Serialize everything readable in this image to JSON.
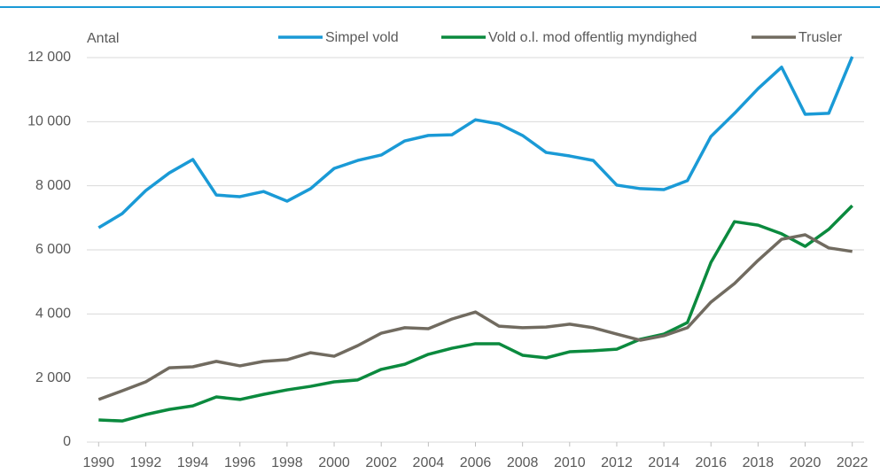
{
  "chart_data": {
    "type": "line",
    "y_label": "Antal",
    "x": [
      1990,
      1991,
      1992,
      1993,
      1994,
      1995,
      1996,
      1997,
      1998,
      1999,
      2000,
      2001,
      2002,
      2003,
      2004,
      2005,
      2006,
      2007,
      2008,
      2009,
      2010,
      2011,
      2012,
      2013,
      2014,
      2015,
      2016,
      2017,
      2018,
      2019,
      2020,
      2021,
      2022
    ],
    "series": [
      {
        "name": "Simpel vold",
        "color": "#1a9ad6",
        "values": [
          6690,
          7130,
          7850,
          8400,
          8820,
          7710,
          7660,
          7820,
          7520,
          7910,
          8540,
          8790,
          8960,
          9400,
          9570,
          9590,
          10060,
          9930,
          9570,
          9040,
          8930,
          8790,
          8020,
          7910,
          7880,
          8160,
          9540,
          10260,
          11030,
          11700,
          10230,
          10260,
          12030
        ]
      },
      {
        "name": "Vold o.l. mod offentlig myndighed",
        "color": "#0b8a3e",
        "values": [
          690,
          660,
          860,
          1020,
          1130,
          1410,
          1330,
          1490,
          1630,
          1740,
          1880,
          1940,
          2270,
          2430,
          2740,
          2930,
          3070,
          3070,
          2710,
          2630,
          2820,
          2850,
          2900,
          3210,
          3370,
          3730,
          5610,
          6880,
          6770,
          6500,
          6110,
          6640,
          7380
        ]
      },
      {
        "name": "Trusler",
        "color": "#716b60",
        "values": [
          1330,
          1600,
          1880,
          2320,
          2350,
          2520,
          2380,
          2520,
          2570,
          2790,
          2680,
          3010,
          3400,
          3570,
          3540,
          3840,
          4060,
          3620,
          3570,
          3590,
          3680,
          3570,
          3370,
          3180,
          3320,
          3570,
          4370,
          4950,
          5670,
          6330,
          6470,
          6060,
          5950
        ]
      }
    ],
    "xlim": [
      1989.5,
      2022.5
    ],
    "xticks": [
      1990,
      1992,
      1994,
      1996,
      1998,
      2000,
      2002,
      2004,
      2006,
      2008,
      2010,
      2012,
      2014,
      2016,
      2018,
      2020,
      2022
    ],
    "ylim": [
      0,
      12000
    ],
    "yticks": [
      0,
      {
        "value": 2000,
        "label": "2 000"
      },
      {
        "value": 4000,
        "label": "4 000"
      },
      {
        "value": 6000,
        "label": "6 000"
      },
      {
        "value": 8000,
        "label": "8 000"
      },
      {
        "value": 10000,
        "label": "10 000"
      },
      {
        "value": 12000,
        "label": "12 000"
      }
    ],
    "grid": true,
    "legend": "top"
  }
}
